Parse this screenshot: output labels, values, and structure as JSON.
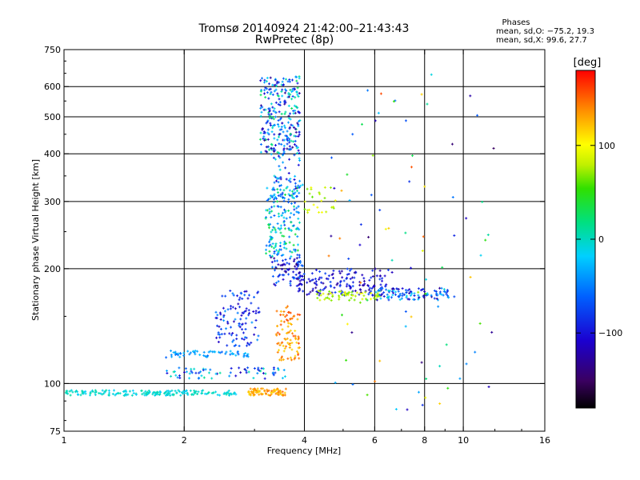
{
  "header": {
    "title": "Tromsø 20140924 21:42:00–21:43:43",
    "subtitle": "RwPretec (8p)"
  },
  "stats": {
    "heading": "Phases",
    "line1": "mean, sd,O: −75.2, 19.3",
    "line2": "mean, sd,X:  99.6, 27.7"
  },
  "colorbar": {
    "unit": "[deg]",
    "min": -180,
    "max": 180,
    "ticks": [
      100,
      0,
      -100
    ],
    "tick_labels": [
      "100",
      "0",
      "−100"
    ]
  },
  "chart_data": {
    "type": "scatter",
    "xlabel": "Frequency [MHz]",
    "ylabel": "Stationary phase Virtual Height [km]",
    "xscale": "log",
    "yscale": "log",
    "xlim": [
      1,
      16
    ],
    "ylim": [
      75,
      750
    ],
    "x_ticks": [
      1,
      2,
      4,
      6,
      8,
      10,
      16
    ],
    "x_tick_labels": [
      "1",
      "2",
      "4",
      "6",
      "8",
      "10",
      "16"
    ],
    "y_ticks": [
      75,
      100,
      200,
      300,
      400,
      500,
      600,
      750
    ],
    "y_tick_labels": [
      "75",
      "100",
      "200",
      "300",
      "400",
      "500",
      "600",
      "750"
    ],
    "grid_x": [
      2,
      4,
      6,
      8,
      10
    ],
    "grid_y": [
      100,
      200,
      300,
      400,
      500,
      600
    ],
    "point_clusters": [
      {
        "x": [
          1.0,
          2.7
        ],
        "y": [
          93,
          96
        ],
        "phase": [
          -20,
          10
        ],
        "count": 180
      },
      {
        "x": [
          2.9,
          3.6
        ],
        "y": [
          93,
          97
        ],
        "phase": [
          110,
          150
        ],
        "count": 80
      },
      {
        "x": [
          1.8,
          2.9
        ],
        "y": [
          117,
          122
        ],
        "phase": [
          -60,
          -20
        ],
        "count": 60
      },
      {
        "x": [
          1.8,
          3.6
        ],
        "y": [
          103,
          110
        ],
        "phase": [
          -120,
          20
        ],
        "count": 70
      },
      {
        "x": [
          2.4,
          3.1
        ],
        "y": [
          125,
          175
        ],
        "phase": [
          -120,
          -40
        ],
        "count": 110
      },
      {
        "x": [
          3.1,
          3.9
        ],
        "y": [
          400,
          640
        ],
        "phase": [
          -140,
          30
        ],
        "count": 260
      },
      {
        "x": [
          3.2,
          3.9
        ],
        "y": [
          215,
          330
        ],
        "phase": [
          -80,
          40
        ],
        "count": 180
      },
      {
        "x": [
          3.3,
          4.0
        ],
        "y": [
          300,
          420
        ],
        "phase": [
          -120,
          0
        ],
        "count": 60
      },
      {
        "x": [
          3.3,
          4.0
        ],
        "y": [
          180,
          215
        ],
        "phase": [
          -140,
          -50
        ],
        "count": 80
      },
      {
        "x": [
          3.4,
          3.9
        ],
        "y": [
          115,
          160
        ],
        "phase": [
          110,
          160
        ],
        "count": 90
      },
      {
        "x": [
          3.8,
          6.5
        ],
        "y": [
          170,
          200
        ],
        "phase": [
          -130,
          -70
        ],
        "count": 150
      },
      {
        "x": [
          4.3,
          6.2
        ],
        "y": [
          165,
          175
        ],
        "phase": [
          60,
          100
        ],
        "count": 60
      },
      {
        "x": [
          6.0,
          9.2
        ],
        "y": [
          165,
          178
        ],
        "phase": [
          -130,
          0
        ],
        "count": 110
      },
      {
        "x": [
          4.0,
          4.8
        ],
        "y": [
          280,
          330
        ],
        "phase": [
          60,
          100
        ],
        "count": 25
      },
      {
        "x": [
          4.5,
          12.0
        ],
        "y": [
          85,
          650
        ],
        "phase": [
          -150,
          160
        ],
        "count": 90
      }
    ]
  }
}
